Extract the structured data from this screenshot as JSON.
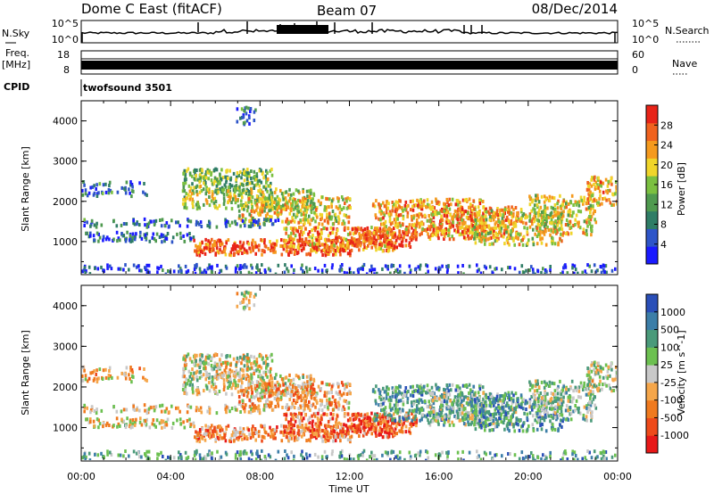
{
  "header": {
    "station": "Dome C East (fitACF)",
    "beam": "Beam 07",
    "date": "08/Dec/2014"
  },
  "strip": {
    "nsky_label": "N.Sky",
    "nsky_ticks": [
      "10^5",
      "10^0"
    ],
    "nsearch_label": "N.Search",
    "nsearch_ticks": [
      "10^5",
      "10^0"
    ],
    "freq_label_line1": "Freq.",
    "freq_label_line2": "[MHz]",
    "freq_ticks": [
      "18",
      "8"
    ],
    "nave_label": "Nave",
    "nave_ticks": [
      "60",
      "0"
    ],
    "cpid_label": "CPID",
    "cpid_value": "twofsound 3501"
  },
  "chart_data": [
    {
      "type": "heatmap",
      "name": "power",
      "ylabel": "Slant Range [km]",
      "ylim": [
        200,
        4500
      ],
      "yticks": [
        "4000",
        "3000",
        "2000",
        "1000"
      ],
      "xticks": [
        "00:00",
        "04:00",
        "08:00",
        "12:00",
        "16:00",
        "20:00",
        "00:00"
      ],
      "colorbar_label": "Power [dB]",
      "colorbar_ticks": [
        "28",
        "24",
        "20",
        "16",
        "12",
        "8",
        "4"
      ],
      "colorbar_colors": [
        "#1a1aff",
        "#2e55c8",
        "#2f7d66",
        "#4f9a4f",
        "#7bc040",
        "#f0d52a",
        "#f59a1e",
        "#f0621e",
        "#e82418"
      ],
      "bands": [
        {
          "range_km": [
            1050,
            1250
          ],
          "level": 0.2
        },
        {
          "range_km": [
            2300,
            2800
          ],
          "level": 0.4
        },
        {
          "range_km": [
            800,
            1000
          ],
          "level": 0.85
        }
      ]
    },
    {
      "type": "heatmap",
      "name": "velocity",
      "ylabel": "Slant Range [km]",
      "ylim": [
        200,
        4500
      ],
      "yticks": [
        "4000",
        "3000",
        "2000",
        "1000"
      ],
      "xticks": [
        "00:00",
        "04:00",
        "08:00",
        "12:00",
        "16:00",
        "20:00",
        "00:00"
      ],
      "xlabel": "Time UT",
      "colorbar_label": "Velocity [m s^-1]",
      "colorbar_ticks": [
        "1000",
        "500",
        "100",
        "25",
        "-25",
        "-100",
        "-500",
        "-1000"
      ],
      "colorbar_colors": [
        "#2a4fb8",
        "#3c7ea8",
        "#4a9a7a",
        "#6cc050",
        "#c8c8c8",
        "#f5a64a",
        "#f07a1e",
        "#ee4a1a",
        "#e81818"
      ]
    }
  ]
}
